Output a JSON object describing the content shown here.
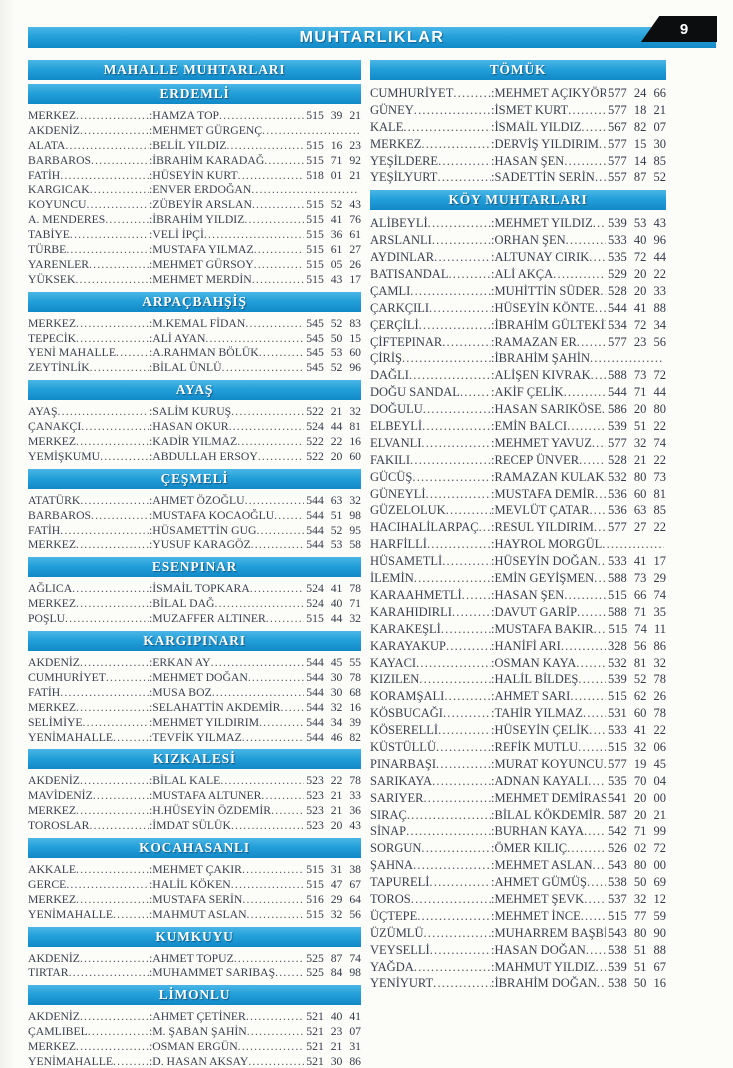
{
  "page": {
    "title": "MUHTARLIKLAR",
    "page_number": "9"
  },
  "left_column": {
    "group_header": "MAHALLE MUHTARLARI",
    "sections": [
      {
        "title": "ERDEMLİ",
        "entries": [
          {
            "place": "MERKEZ",
            "person": "HAMZA TOP",
            "phone": "515 39 21"
          },
          {
            "place": "AKDENİZ",
            "person": "MEHMET GÜRGENÇ",
            "phone": ""
          },
          {
            "place": "ALATA",
            "person": "BELİL YILDIZ",
            "phone": "515 16 23"
          },
          {
            "place": "BARBAROS",
            "person": "İBRAHİM KARADAĞ",
            "phone": "515 71 92"
          },
          {
            "place": "FATİH",
            "person": "HÜSEYİN KURT",
            "phone": "518 01 21"
          },
          {
            "place": "KARGICAK",
            "person": "ENVER ERDOĞAN",
            "phone": ""
          },
          {
            "place": "KOYUNCU",
            "person": "ZÜBEYİR ARSLAN",
            "phone": "515 52 43"
          },
          {
            "place": "A. MENDERES",
            "person": "İBRAHİM YILDIZ",
            "phone": "515 41 76"
          },
          {
            "place": "TABİYE",
            "person": "VELİ İPÇİ",
            "phone": "515 36 61"
          },
          {
            "place": "TÜRBE",
            "person": "MUSTAFA YILMAZ",
            "phone": "515 61 27"
          },
          {
            "place": "YARENLER",
            "person": "MEHMET GÜRSOY",
            "phone": "515 05 26"
          },
          {
            "place": "YÜKSEK",
            "person": "MEHMET MERDİN",
            "phone": "515 43 17"
          }
        ]
      },
      {
        "title": "ARPAÇBAHŞİŞ",
        "entries": [
          {
            "place": "MERKEZ",
            "person": "M.KEMAL FİDAN",
            "phone": "545 52 83"
          },
          {
            "place": "TEPECİK",
            "person": "ALİ AYAN",
            "phone": "545 50 15"
          },
          {
            "place": "YENİ MAHALLE",
            "person": "A.RAHMAN BÖLÜK",
            "phone": "545 53 60"
          },
          {
            "place": "ZEYTİNLİK",
            "person": "BİLAL ÜNLÜ",
            "phone": "545 52 96"
          }
        ]
      },
      {
        "title": "AYAŞ",
        "entries": [
          {
            "place": "AYAŞ",
            "person": "SALİM KURUŞ",
            "phone": "522 21 32"
          },
          {
            "place": "ÇANAKÇI",
            "person": "HASAN OKUR",
            "phone": "524 44 81"
          },
          {
            "place": "MERKEZ",
            "person": "KADİR YILMAZ",
            "phone": "522 22 16"
          },
          {
            "place": "YEMİŞKUMU",
            "person": "ABDULLAH ERSOY",
            "phone": "522 20 60"
          }
        ]
      },
      {
        "title": "ÇEŞMELİ",
        "entries": [
          {
            "place": "ATATÜRK",
            "person": "AHMET ÖZOĞLU",
            "phone": "544 63 32"
          },
          {
            "place": "BARBAROS",
            "person": "MUSTAFA KOCAOĞLU",
            "phone": "544 51 98"
          },
          {
            "place": "FATİH",
            "person": "HÜSAMETTİN GUG",
            "phone": "544 52 95"
          },
          {
            "place": "MERKEZ",
            "person": "YUSUF KARAGÖZ",
            "phone": "544 53 58"
          }
        ]
      },
      {
        "title": "ESENPINAR",
        "entries": [
          {
            "place": "AĞLICA",
            "person": "İSMAİL TOPKARA",
            "phone": "524 41 78"
          },
          {
            "place": "MERKEZ",
            "person": "BİLAL DAĞ",
            "phone": "524 40 71"
          },
          {
            "place": "POŞLU",
            "person": "MUZAFFER ALTINER",
            "phone": "515 44 32"
          }
        ]
      },
      {
        "title": "KARGIPINARI",
        "entries": [
          {
            "place": "AKDENİZ",
            "person": "ERKAN AY",
            "phone": "544 45 55"
          },
          {
            "place": "CUMHURİYET",
            "person": "MEHMET DOĞAN",
            "phone": "544 30 78"
          },
          {
            "place": "FATİH",
            "person": "MUSA BOZ",
            "phone": "544 30 68"
          },
          {
            "place": "MERKEZ",
            "person": "SELAHATTİN AKDEMİR",
            "phone": "544 32 16"
          },
          {
            "place": "SELİMİYE",
            "person": "MEHMET YILDIRIM",
            "phone": "544 34 39"
          },
          {
            "place": "YENİMAHALLE",
            "person": "TEVFİK YILMAZ",
            "phone": "544 46 82"
          }
        ]
      },
      {
        "title": "KIZKALESİ",
        "entries": [
          {
            "place": "AKDENİZ",
            "person": "BİLAL KALE",
            "phone": "523 22 78"
          },
          {
            "place": "MAVİDENİZ",
            "person": "MUSTAFA ALTUNER",
            "phone": "523 21 33"
          },
          {
            "place": "MERKEZ",
            "person": "H.HÜSEYİN ÖZDEMİR",
            "phone": "523 21 36"
          },
          {
            "place": "TOROSLAR",
            "person": "İMDAT SÜLÜK",
            "phone": "523 20 43"
          }
        ]
      },
      {
        "title": "KOCAHASANLI",
        "entries": [
          {
            "place": "AKKALE",
            "person": "MEHMET ÇAKIR",
            "phone": "515 31 38"
          },
          {
            "place": "GERCE",
            "person": "HALİL KÖKEN",
            "phone": "515 47 67"
          },
          {
            "place": "MERKEZ",
            "person": "MUSTAFA SERİN",
            "phone": "516 29 64"
          },
          {
            "place": "YENİMAHALLE",
            "person": "MAHMUT ASLAN",
            "phone": "515 32 56"
          }
        ]
      },
      {
        "title": "KUMKUYU",
        "entries": [
          {
            "place": "AKDENİZ",
            "person": "AHMET TOPUZ",
            "phone": "525 87 74"
          },
          {
            "place": "TIRTAR",
            "person": "MUHAMMET SARIBAŞ",
            "phone": "525 84 98"
          }
        ]
      },
      {
        "title": "LİMONLU",
        "entries": [
          {
            "place": "AKDENİZ",
            "person": "AHMET ÇETİNER",
            "phone": "521 40 41"
          },
          {
            "place": "ÇAMLIBEL",
            "person": "M. ŞABAN ŞAHİN",
            "phone": "521 23 07"
          },
          {
            "place": "MERKEZ",
            "person": "OSMAN ERGÜN",
            "phone": "521 21 31"
          },
          {
            "place": "YENİMAHALLE",
            "person": "D. HASAN AKSAY",
            "phone": "521 30 86"
          }
        ]
      }
    ]
  },
  "right_column": {
    "sections": [
      {
        "title": "TÖMÜK",
        "entries": [
          {
            "place": "CUMHURİYET",
            "person": "MEHMET AÇIKYÖRÜK",
            "phone": "577 24 66"
          },
          {
            "place": "GÜNEY",
            "person": "İSMET KURT",
            "phone": "577 18 21"
          },
          {
            "place": "KALE",
            "person": "İSMAİL YILDIZ",
            "phone": "567 82 07"
          },
          {
            "place": "MERKEZ",
            "person": "DERVİŞ YILDIRIM",
            "phone": "577 15 30"
          },
          {
            "place": "YEŞİLDERE",
            "person": "HASAN ŞEN",
            "phone": "577 14 85"
          },
          {
            "place": "YEŞİLYURT",
            "person": "SADETTİN SERİN",
            "phone": "557 87 52"
          }
        ]
      },
      {
        "title": "KÖY MUHTARLARI",
        "entries": [
          {
            "place": "ALİBEYLİ",
            "person": "MEHMET YILDIZ",
            "phone": "539 53 43"
          },
          {
            "place": "ARSLANLI",
            "person": "ORHAN ŞEN",
            "phone": "533 40 96"
          },
          {
            "place": "AYDINLAR",
            "person": "ALTUNAY CIRIK",
            "phone": "535 72 44"
          },
          {
            "place": "BATISANDAL",
            "person": "ALİ AKÇA",
            "phone": "529 20 22"
          },
          {
            "place": "ÇAMLI",
            "person": "MUHİTTİN SÜDER",
            "phone": "528 20 33"
          },
          {
            "place": "ÇARKÇILI",
            "person": "HÜSEYİN KÖNTE",
            "phone": "544 41 88"
          },
          {
            "place": "ÇERÇİLİ",
            "person": "İBRAHİM GÜLTEKİN",
            "phone": "534 72 34"
          },
          {
            "place": "ÇİFTEPINAR",
            "person": "RAMAZAN ER",
            "phone": "577 23 56"
          },
          {
            "place": "ÇİRİŞ",
            "person": "İBRAHİM ŞAHİN",
            "phone": ""
          },
          {
            "place": "DAĞLI",
            "person": "ALİŞEN KIVRAK",
            "phone": "588 73 72"
          },
          {
            "place": "DOĞU SANDAL",
            "person": "AKİF ÇELİK",
            "phone": "544 71 44"
          },
          {
            "place": "DOĞULU",
            "person": "HASAN SARIKÖSE",
            "phone": "586 20 80"
          },
          {
            "place": "ELBEYLİ",
            "person": "EMİN BALCI",
            "phone": "539 51 22"
          },
          {
            "place": "ELVANLI",
            "person": "MEHMET YAVUZ",
            "phone": "577 32 74"
          },
          {
            "place": "FAKILI",
            "person": "RECEP ÜNVER",
            "phone": "528 21 22"
          },
          {
            "place": "GÜCÜŞ",
            "person": "RAMAZAN KULAK",
            "phone": "532 80 73"
          },
          {
            "place": "GÜNEYLİ",
            "person": "MUSTAFA DEMİR",
            "phone": "536 60 81"
          },
          {
            "place": "GÜZELOLUK",
            "person": "MEVLÜT ÇATAR",
            "phone": "536 63 85"
          },
          {
            "place": "HACIHALİLARPAÇ",
            "person": "RESUL YILDIRIM",
            "phone": "577 27 22"
          },
          {
            "place": "HARFİLLİ",
            "person": "HAYROL MORGÜL",
            "phone": ""
          },
          {
            "place": "HÜSAMETLİ",
            "person": "HÜSEYİN DOĞAN",
            "phone": "533 41 17"
          },
          {
            "place": "İLEMİN",
            "person": "EMİN GEYİŞMEN",
            "phone": "588 73 29"
          },
          {
            "place": "KARAAHMETLİ",
            "person": "HASAN ŞEN",
            "phone": "515 66 74"
          },
          {
            "place": "KARAHIDIRLI",
            "person": "DAVUT GARİP",
            "phone": "588 71 35"
          },
          {
            "place": "KARAKEŞLİ",
            "person": "MUSTAFA BAKIR",
            "phone": "515 74 11"
          },
          {
            "place": "KARAYAKUP",
            "person": "HANİFİ ARI",
            "phone": "328 56 86"
          },
          {
            "place": "KAYACI",
            "person": "OSMAN KAYA",
            "phone": "532 81 32"
          },
          {
            "place": "KIZILEN",
            "person": "HALİL BİLDEŞ",
            "phone": "539 52 78"
          },
          {
            "place": "KORAMŞALI",
            "person": "AHMET SARI",
            "phone": "515 62 26"
          },
          {
            "place": "KÖSBUCAĞI",
            "person": "TAHİR YILMAZ",
            "phone": "531 60 78"
          },
          {
            "place": "KÖSERELLİ",
            "person": "HÜSEYİN ÇELİK",
            "phone": "533 41 22"
          },
          {
            "place": "KÜSTÜLLÜ",
            "person": "REFİK MUTLU",
            "phone": "515 32 06"
          },
          {
            "place": "PINARBAŞI",
            "person": "MURAT KOYUNCU",
            "phone": "577 19 45"
          },
          {
            "place": "SARIKAYA",
            "person": "ADNAN KAYALI",
            "phone": "535 70 04"
          },
          {
            "place": "SARIYER",
            "person": "MEHMET DEMİRASLAN",
            "phone": "541 20 00"
          },
          {
            "place": "SIRAÇ",
            "person": "BİLAL KÖKDEMİR",
            "phone": "587 20 21"
          },
          {
            "place": "SİNAP",
            "person": "BURHAN KAYA",
            "phone": "542 71 99"
          },
          {
            "place": "SORGUN",
            "person": "ÖMER KILIÇ",
            "phone": "526 02 72"
          },
          {
            "place": "ŞAHNA",
            "person": "MEHMET ASLAN",
            "phone": "543 80 00"
          },
          {
            "place": "TAPURELİ",
            "person": "AHMET GÜMÜŞ",
            "phone": "538 50 69"
          },
          {
            "place": "TOROS",
            "person": "MEHMET ŞEVK",
            "phone": "537 32 12"
          },
          {
            "place": "ÜÇTEPE",
            "person": "MEHMET İNCE",
            "phone": "515 77 59"
          },
          {
            "place": "ÜZÜMLÜ",
            "person": "MUHARREM BAŞBİLEN",
            "phone": "543 80 90"
          },
          {
            "place": "VEYSELLİ",
            "person": "HASAN DOĞAN",
            "phone": "538 51 88"
          },
          {
            "place": "YAĞDA",
            "person": "MAHMUT YILDIZ",
            "phone": "539 51 67"
          },
          {
            "place": "YENİYURT",
            "person": "İBRAHİM DOĞAN",
            "phone": "538 50 16"
          }
        ]
      }
    ]
  }
}
